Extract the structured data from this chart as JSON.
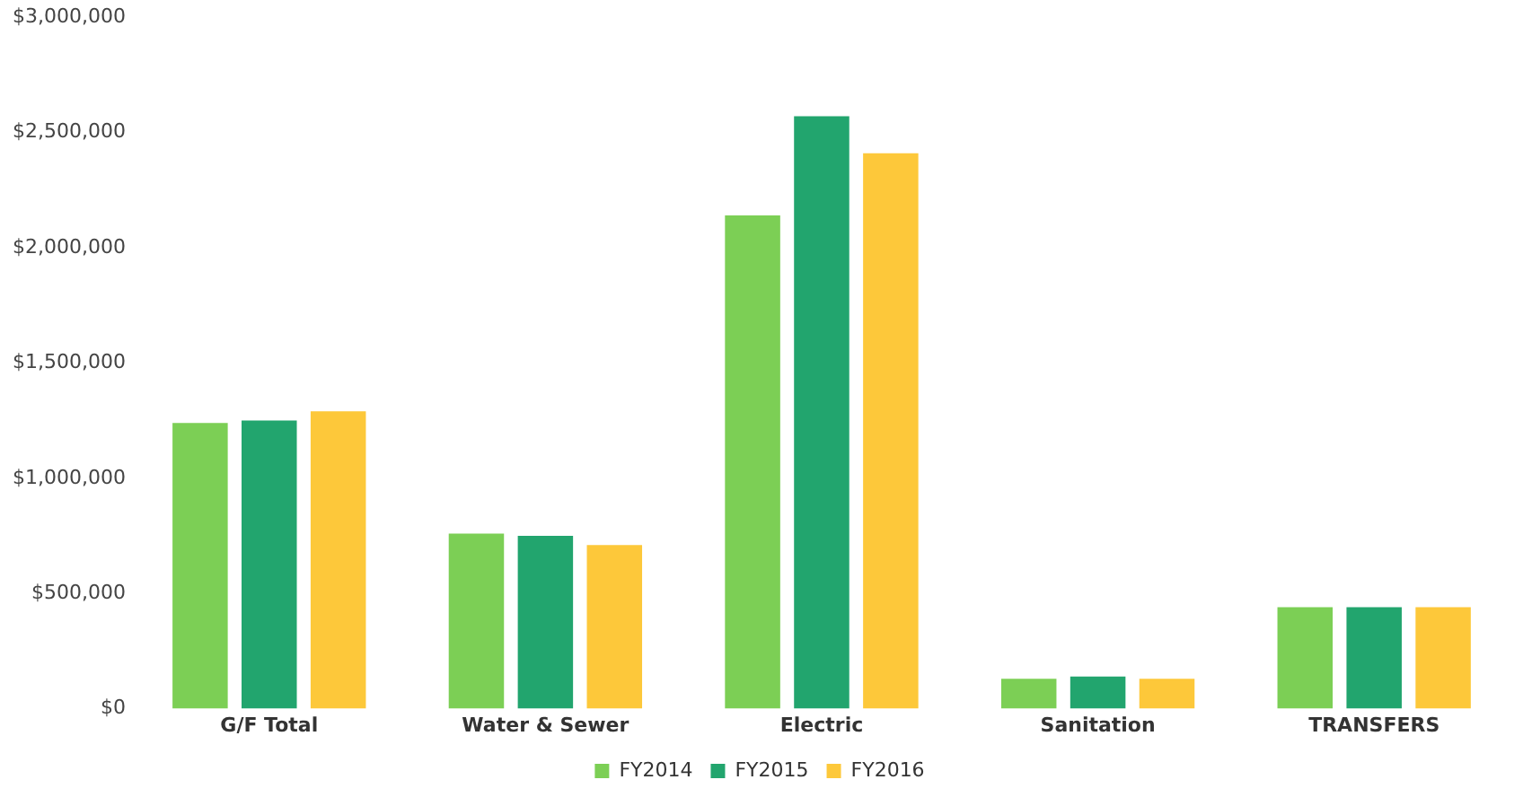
{
  "chart_data": {
    "type": "bar",
    "categories": [
      "G/F Total",
      "Water & Sewer",
      "Electric",
      "Sanitation",
      "TRANSFERS"
    ],
    "series": [
      {
        "name": "FY2014",
        "color": "#7ccf55",
        "values": [
          1240000,
          760000,
          2140000,
          130000,
          440000
        ]
      },
      {
        "name": "FY2015",
        "color": "#22a56e",
        "values": [
          1250000,
          750000,
          2570000,
          140000,
          440000
        ]
      },
      {
        "name": "FY2016",
        "color": "#fdc83a",
        "values": [
          1290000,
          710000,
          2410000,
          130000,
          440000
        ]
      }
    ],
    "ylim": [
      0,
      3000000
    ],
    "yticks": [
      {
        "value": 0,
        "label": "$0"
      },
      {
        "value": 500000,
        "label": "$500,000"
      },
      {
        "value": 1000000,
        "label": "$1,000,000"
      },
      {
        "value": 1500000,
        "label": "$1,500,000"
      },
      {
        "value": 2000000,
        "label": "$2,000,000"
      },
      {
        "value": 2500000,
        "label": "$2,500,000"
      },
      {
        "value": 3000000,
        "label": "$3,000,000"
      }
    ],
    "grid": false,
    "legend": "bottom"
  }
}
